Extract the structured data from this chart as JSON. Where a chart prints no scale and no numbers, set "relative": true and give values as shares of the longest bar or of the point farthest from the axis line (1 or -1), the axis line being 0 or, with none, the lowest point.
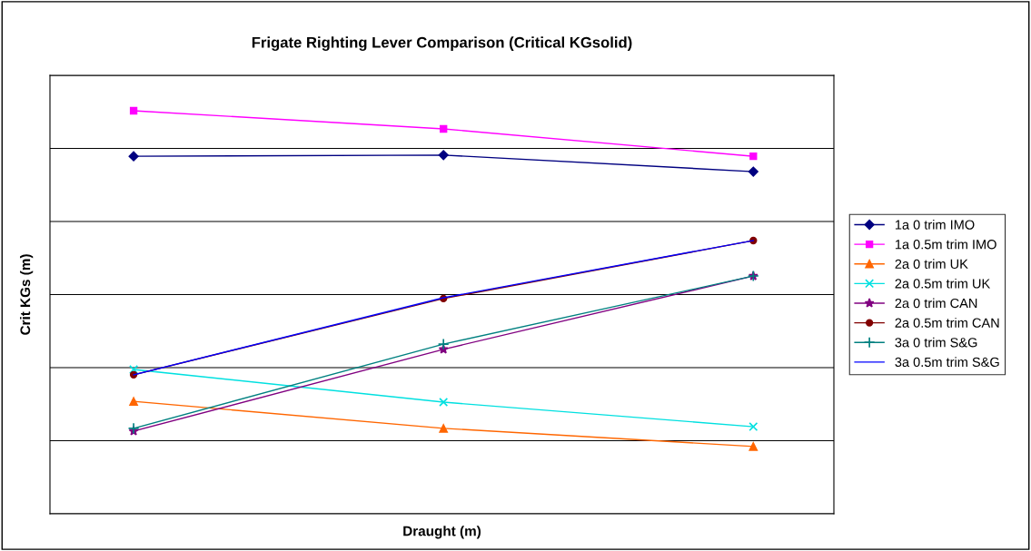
{
  "chart_data": {
    "type": "line",
    "title": "Frigate Righting Lever Comparison (Critical KGsolid)",
    "xlabel": "Draught (m)",
    "ylabel": "Crit KGs (m)",
    "categories": [
      null,
      null,
      null
    ],
    "relative": true,
    "grid": "y",
    "legend": "right",
    "series": [
      {
        "name": "1a 0 trim IMO",
        "color": "#000080",
        "marker": "diamond",
        "values": [
          0.887,
          0.89,
          0.849
        ]
      },
      {
        "name": "1a 0.5m trim IMO",
        "color": "#ff00ff",
        "marker": "square",
        "values": [
          1.0,
          0.955,
          0.887
        ]
      },
      {
        "name": "2a 0 trim UK",
        "color": "#ff6600",
        "marker": "triangle",
        "values": [
          0.279,
          0.212,
          0.167
        ]
      },
      {
        "name": "2a 0.5m trim UK",
        "color": "#00e0e0",
        "marker": "cross",
        "values": [
          0.358,
          0.277,
          0.216
        ]
      },
      {
        "name": "2a 0 trim CAN",
        "color": "#800080",
        "marker": "star",
        "values": [
          0.205,
          0.408,
          0.59
        ]
      },
      {
        "name": "2a 0.5m trim CAN",
        "color": "#800000",
        "marker": "circle",
        "values": [
          0.345,
          0.534,
          0.678
        ]
      },
      {
        "name": "3a 0 trim S&G",
        "color": "#008080",
        "marker": "plus",
        "values": [
          0.212,
          0.421,
          0.59
        ]
      },
      {
        "name": "3a 0.5m trim S&G",
        "color": "#0000ff",
        "marker": "none",
        "values": [
          0.345,
          0.536,
          0.678
        ]
      }
    ]
  }
}
